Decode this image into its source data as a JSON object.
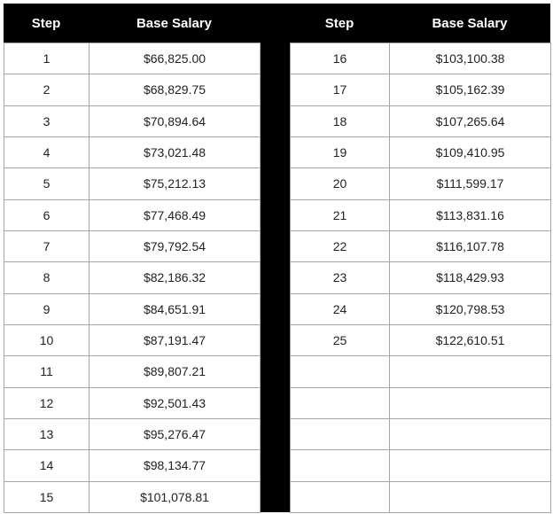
{
  "left": {
    "headers": [
      "Step",
      "Base Salary"
    ],
    "rows": [
      [
        1,
        "$66,825.00"
      ],
      [
        2,
        "$68,829.75"
      ],
      [
        3,
        "$70,894.64"
      ],
      [
        4,
        "$73,021.48"
      ],
      [
        5,
        "$75,212.13"
      ],
      [
        6,
        "$77,468.49"
      ],
      [
        7,
        "$79,792.54"
      ],
      [
        8,
        "$82,186.32"
      ],
      [
        9,
        "$84,651.91"
      ],
      [
        10,
        "$87,191.47"
      ],
      [
        11,
        "$89,807.21"
      ],
      [
        12,
        "$92,501.43"
      ],
      [
        13,
        "$95,276.47"
      ],
      [
        14,
        "$98,134.77"
      ],
      [
        15,
        "$101,078.81"
      ]
    ]
  },
  "right": {
    "headers": [
      "Step",
      "Base Salary"
    ],
    "rows": [
      [
        16,
        "$103,100.38"
      ],
      [
        17,
        "$105,162.39"
      ],
      [
        18,
        "$107,265.64"
      ],
      [
        19,
        "$109,410.95"
      ],
      [
        20,
        "$111,599.17"
      ],
      [
        21,
        "$113,831.16"
      ],
      [
        22,
        "$116,107.78"
      ],
      [
        23,
        "$118,429.93"
      ],
      [
        24,
        "$120,798.53"
      ],
      [
        25,
        "$122,610.51"
      ]
    ]
  }
}
